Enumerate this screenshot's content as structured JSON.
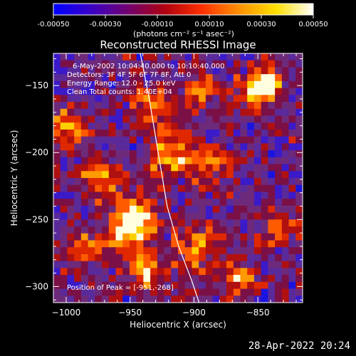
{
  "colorbar": {
    "tick_labels": [
      "-0.00050",
      "-0.00030",
      "-0.00010",
      "0.00010",
      "0.00030",
      "0.00050"
    ],
    "tick_values": [
      -0.0005,
      -0.0003,
      -0.0001,
      0.0001,
      0.0003,
      0.0005
    ],
    "units": "(photons cm⁻² s⁻¹ asec⁻²)",
    "stops": [
      "#0000ff",
      "#3a00c8",
      "#700070",
      "#b00010",
      "#ff3000",
      "#ff9000",
      "#ffe000",
      "#ffffff"
    ]
  },
  "chart_data": {
    "type": "heatmap",
    "title": "Reconstructed RHESSI Image",
    "xlabel": "Heliocentric X (arcsec)",
    "ylabel": "Heliocentric Y (arcsec)",
    "xlim": [
      -1010,
      -815
    ],
    "ylim": [
      -312,
      -126
    ],
    "x_ticks": [
      -1000,
      -950,
      -900,
      -850
    ],
    "y_ticks": [
      -300,
      -250,
      -200,
      -150
    ],
    "x_tick_labels": [
      "−1000",
      "−950",
      "−900",
      "−850"
    ],
    "y_tick_labels": [
      "−300",
      "−250",
      "−200",
      "−150"
    ],
    "annotations": [
      "6-May-2002 10:04:40.000 to 10:10:40.000",
      "Detectors: 3F 4F 5F 6F 7F 8F, Att 0",
      "Energy Range: 12.0 - 25.0 keV",
      "Clean     Total counts: 1.40E+04"
    ],
    "peak_label": "Position of Peak = [-951,-268]",
    "peak": [
      -951,
      -268
    ],
    "limb_curve": [
      [
        -942,
        -126
      ],
      [
        -935,
        -160
      ],
      [
        -928,
        -200
      ],
      [
        -921,
        -240
      ],
      [
        -912,
        -270
      ],
      [
        -902,
        -295
      ],
      [
        -896,
        -312
      ]
    ]
  },
  "footer": {
    "timestamp": "28-Apr-2022 20:24"
  }
}
